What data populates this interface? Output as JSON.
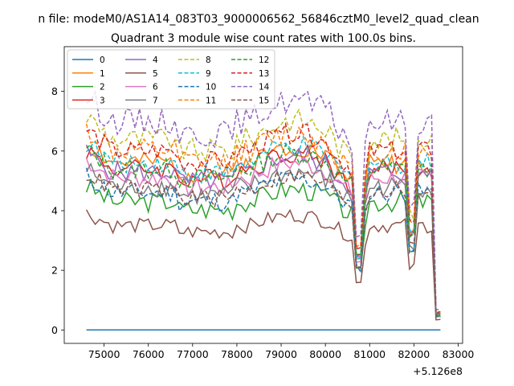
{
  "chart_data": {
    "type": "line",
    "suptitle": "n file: modeM0/AS1A14_083T03_9000006562_56846cztM0_level2_quad_clean",
    "title": "Quadrant 3 module wise count rates with 100.0s bins.",
    "xlabel": "",
    "ylabel": "",
    "x_offset_label": "+5.126e8",
    "x_range": [
      74600,
      82600
    ],
    "xlim": [
      74100,
      83100
    ],
    "ylim": [
      -0.45,
      9.5
    ],
    "x_ticks": [
      75000,
      76000,
      77000,
      78000,
      79000,
      80000,
      81000,
      82000,
      83000
    ],
    "x_tick_labels": [
      "75000",
      "76000",
      "77000",
      "78000",
      "79000",
      "80000",
      "81000",
      "82000",
      "83000"
    ],
    "y_ticks": [
      0,
      2,
      4,
      6,
      8
    ],
    "y_tick_labels": [
      "0",
      "2",
      "4",
      "6",
      "8"
    ],
    "grid": false,
    "legend_position": "top-left",
    "legend_columns": 4,
    "series": [
      {
        "name": "0",
        "color": "#1f77b4",
        "style": "solid",
        "base": 0.0,
        "amp": 0.0,
        "seed": 1
      },
      {
        "name": "1",
        "color": "#ff7f0e",
        "style": "solid",
        "base": 5.6,
        "amp": 0.35,
        "seed": 2
      },
      {
        "name": "2",
        "color": "#2ca02c",
        "style": "solid",
        "base": 4.3,
        "amp": 0.35,
        "seed": 3
      },
      {
        "name": "3",
        "color": "#d62728",
        "style": "solid",
        "base": 5.4,
        "amp": 0.35,
        "seed": 4
      },
      {
        "name": "4",
        "color": "#9467bd",
        "style": "solid",
        "base": 5.3,
        "amp": 0.35,
        "seed": 5
      },
      {
        "name": "5",
        "color": "#8c564b",
        "style": "solid",
        "base": 3.5,
        "amp": 0.25,
        "seed": 6
      },
      {
        "name": "6",
        "color": "#e377c2",
        "style": "solid",
        "base": 5.1,
        "amp": 0.35,
        "seed": 7
      },
      {
        "name": "7",
        "color": "#7f7f7f",
        "style": "solid",
        "base": 4.8,
        "amp": 0.35,
        "seed": 8
      },
      {
        "name": "8",
        "color": "#bcbd22",
        "style": "dashed",
        "base": 6.4,
        "amp": 0.4,
        "seed": 9
      },
      {
        "name": "9",
        "color": "#17becf",
        "style": "dashed",
        "base": 5.6,
        "amp": 0.35,
        "seed": 10
      },
      {
        "name": "10",
        "color": "#1f77b4",
        "style": "dashed",
        "base": 4.6,
        "amp": 0.35,
        "seed": 11
      },
      {
        "name": "11",
        "color": "#ff7f0e",
        "style": "dashed",
        "base": 6.0,
        "amp": 0.4,
        "seed": 12
      },
      {
        "name": "12",
        "color": "#2ca02c",
        "style": "dashed",
        "base": 5.4,
        "amp": 0.35,
        "seed": 13
      },
      {
        "name": "13",
        "color": "#d62728",
        "style": "dashed",
        "base": 6.0,
        "amp": 0.35,
        "seed": 14
      },
      {
        "name": "14",
        "color": "#9467bd",
        "style": "dashed",
        "base": 7.0,
        "amp": 0.45,
        "seed": 15
      },
      {
        "name": "15",
        "color": "#8c564b",
        "style": "dashed",
        "base": 4.7,
        "amp": 0.3,
        "seed": 16
      }
    ]
  }
}
